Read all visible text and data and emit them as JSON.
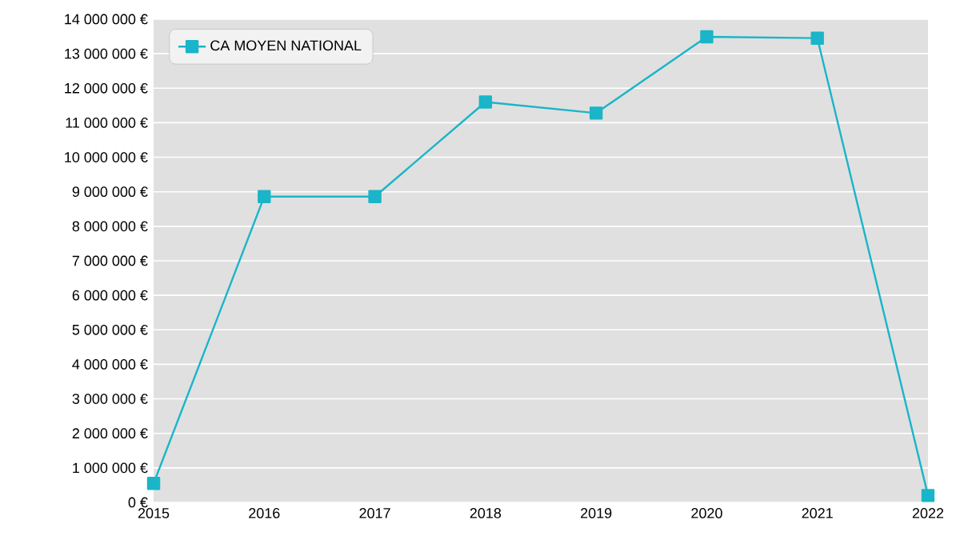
{
  "chart_data": {
    "type": "line",
    "x": [
      2015,
      2016,
      2017,
      2018,
      2019,
      2020,
      2021,
      2022
    ],
    "series": [
      {
        "name": "CA MOYEN NATIONAL",
        "color": "#1ab5c8",
        "values": [
          550000,
          8860000,
          8860000,
          11600000,
          11280000,
          13490000,
          13450000,
          200000
        ]
      }
    ],
    "xlim": [
      2015,
      2022
    ],
    "xticks": [
      2015,
      2016,
      2017,
      2018,
      2019,
      2020,
      2021,
      2022
    ],
    "ylim": [
      0,
      14000000
    ],
    "yticks": [
      {
        "value": 0,
        "label": "0 €"
      },
      {
        "value": 1000000,
        "label": "1 000 000 €"
      },
      {
        "value": 2000000,
        "label": "2 000 000 €"
      },
      {
        "value": 3000000,
        "label": "3 000 000 €"
      },
      {
        "value": 4000000,
        "label": "4 000 000 €"
      },
      {
        "value": 5000000,
        "label": "5 000 000 €"
      },
      {
        "value": 6000000,
        "label": "6 000 000 €"
      },
      {
        "value": 7000000,
        "label": "7 000 000 €"
      },
      {
        "value": 8000000,
        "label": "8 000 000 €"
      },
      {
        "value": 9000000,
        "label": "9 000 000 €"
      },
      {
        "value": 10000000,
        "label": "10 000 000 €"
      },
      {
        "value": 11000000,
        "label": "11 000 000 €"
      },
      {
        "value": 12000000,
        "label": "12 000 000 €"
      },
      {
        "value": 13000000,
        "label": "13 000 000 €"
      },
      {
        "value": 14000000,
        "label": "14 000 000 €"
      }
    ],
    "grid": "y",
    "legend": "top left",
    "marker": "square",
    "line_style": "solid"
  }
}
